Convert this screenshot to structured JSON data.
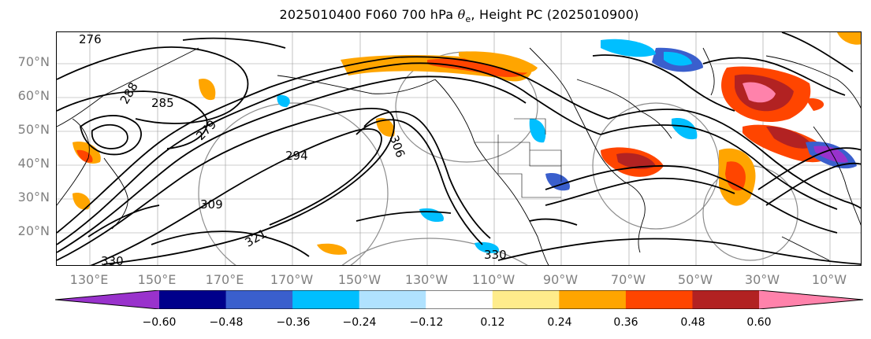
{
  "title": {
    "prefix": "2025010400 F060 700 hPa ",
    "symbol": "θ",
    "symbol_sub": "e",
    "suffix": ", Height PC (2025010900)"
  },
  "axes": {
    "lat_labels": [
      "70°N",
      "60°N",
      "50°N",
      "40°N",
      "30°N",
      "20°N"
    ],
    "lon_labels": [
      "130°E",
      "150°E",
      "170°E",
      "170°W",
      "150°W",
      "130°W",
      "110°W",
      "90°W",
      "70°W",
      "50°W",
      "30°W",
      "10°W"
    ]
  },
  "contour_labels": [
    "276",
    "288",
    "285",
    "279",
    "294",
    "306",
    "309",
    "321",
    "330",
    "330"
  ],
  "colorbar": {
    "tick_labels": [
      "−0.60",
      "−0.48",
      "−0.36",
      "−0.24",
      "−0.12",
      "0.12",
      "0.24",
      "0.36",
      "0.48",
      "0.60"
    ],
    "colors": [
      "#9932cc",
      "#00008b",
      "#3a5fcd",
      "#00bfff",
      "#b0e2ff",
      "#ffffff",
      "#ffec8b",
      "#ffa500",
      "#ff4500",
      "#b22222",
      "#ff82ab"
    ],
    "extend": "both"
  }
}
